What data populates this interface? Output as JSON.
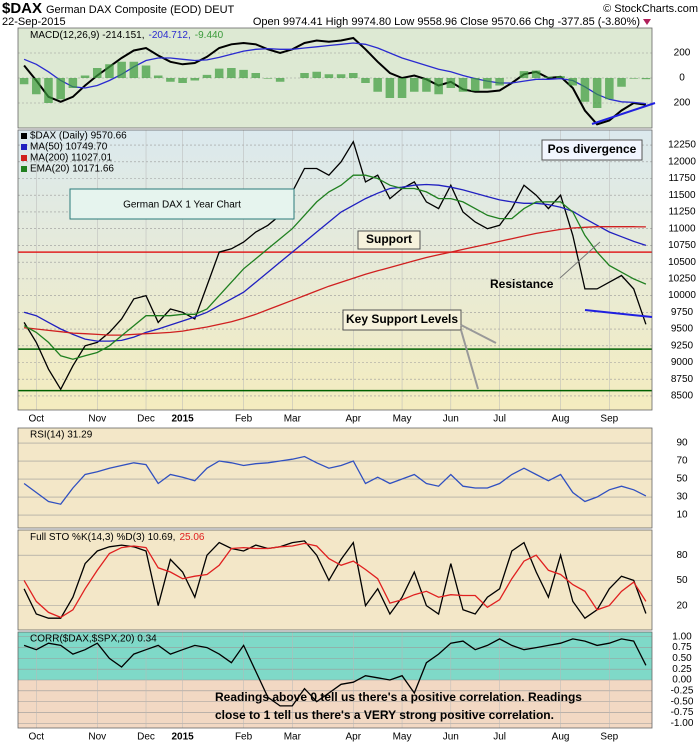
{
  "header": {
    "symbol": "$DAX",
    "name": "German DAX Composite (EOD) DEUT",
    "date": "22-Sep-2015",
    "quote": "Open 9974.41 High 9974.80 Low 9558.96 Close 9570.66 Chg -377.85 (-3.80%)",
    "source": "© StockCharts.com"
  },
  "chart_data": [
    {
      "type": "line",
      "ylim": [
        -400,
        400
      ],
      "yticks": [
        200,
        0,
        {
          "value": -200,
          "label": "200"
        }
      ],
      "series": [
        {
          "name": "MACD(12,26,9) -214.151,",
          "color": "#000000",
          "values": [
            100,
            -20,
            -150,
            -190,
            -150,
            -60,
            20,
            90,
            160,
            220,
            240,
            180,
            130,
            110,
            120,
            170,
            240,
            270,
            280,
            270,
            230,
            200,
            230,
            280,
            300,
            290,
            300,
            320,
            230,
            130,
            40,
            0,
            20,
            -10,
            -60,
            -30,
            -90,
            -110,
            -110,
            -100,
            -40,
            30,
            50,
            0,
            10,
            -80,
            -260,
            -370,
            -340,
            -260,
            -200,
            -214.151
          ]
        },
        {
          "name": "-204.712,",
          "color": "#2a2ad0",
          "values": [
            150,
            110,
            50,
            -20,
            -70,
            -80,
            -60,
            -20,
            30,
            90,
            140,
            160,
            160,
            150,
            140,
            145,
            165,
            190,
            215,
            230,
            235,
            230,
            230,
            240,
            250,
            260,
            270,
            280,
            270,
            240,
            200,
            160,
            130,
            100,
            70,
            50,
            20,
            -5,
            -25,
            -40,
            -40,
            -25,
            -10,
            -10,
            -5,
            -20,
            -70,
            -130,
            -170,
            -190,
            -195,
            -204.712
          ]
        },
        {
          "name": "-9.440",
          "color": "#3a9a3a",
          "type": "bar",
          "values": [
            -50,
            -130,
            -200,
            -170,
            -80,
            20,
            80,
            110,
            130,
            130,
            100,
            20,
            -30,
            -40,
            -20,
            25,
            75,
            80,
            65,
            40,
            -5,
            -30,
            0,
            40,
            50,
            30,
            30,
            40,
            -40,
            -110,
            -160,
            -160,
            -110,
            -110,
            -130,
            -80,
            -110,
            -105,
            -85,
            -60,
            0,
            55,
            60,
            10,
            15,
            -60,
            -190,
            -240,
            -170,
            -70,
            -5,
            -9.44
          ]
        }
      ]
    },
    {
      "type": "line",
      "ylim": [
        8290,
        12475
      ],
      "yticks": [
        8500,
        8750,
        9000,
        9250,
        9500,
        9750,
        10000,
        10250,
        10500,
        10750,
        11000,
        11250,
        11500,
        11750,
        12000,
        12250
      ],
      "categories": [
        null,
        "Oct",
        null,
        null,
        null,
        null,
        "Nov",
        null,
        null,
        null,
        "Dec",
        null,
        null,
        "2015",
        null,
        null,
        null,
        null,
        "Feb",
        null,
        null,
        null,
        "Mar",
        null,
        null,
        null,
        null,
        "Apr",
        null,
        null,
        null,
        "May",
        null,
        null,
        null,
        "Jun",
        null,
        null,
        null,
        "Jul",
        null,
        null,
        null,
        null,
        "Aug",
        null,
        null,
        null,
        "Sep",
        null,
        null,
        null
      ],
      "series": [
        {
          "name": "$DAX (Daily) 9570.66",
          "color": "#000000",
          "values": [
            9600,
            9300,
            8900,
            8600,
            8950,
            9250,
            9300,
            9450,
            9650,
            9950,
            10000,
            9600,
            9800,
            9750,
            9650,
            10150,
            10650,
            10700,
            10800,
            10950,
            11050,
            11200,
            11550,
            11900,
            11900,
            11800,
            12000,
            12300,
            11700,
            11800,
            11450,
            11600,
            11700,
            11400,
            11300,
            11650,
            11250,
            11100,
            11000,
            11050,
            11300,
            11650,
            11500,
            11300,
            11500,
            10900,
            10100,
            10100,
            10200,
            10300,
            10100,
            9570.66
          ]
        },
        {
          "name": "MA(50) 10749.70",
          "color": "#2020c0",
          "values": [
            9750,
            9700,
            9600,
            9500,
            9420,
            9350,
            9320,
            9320,
            9330,
            9380,
            9450,
            9500,
            9560,
            9620,
            9680,
            9750,
            9850,
            9950,
            10050,
            10200,
            10350,
            10500,
            10650,
            10800,
            10950,
            11100,
            11250,
            11350,
            11450,
            11530,
            11600,
            11620,
            11650,
            11660,
            11650,
            11620,
            11580,
            11530,
            11480,
            11430,
            11400,
            11380,
            11380,
            11360,
            11320,
            11260,
            11150,
            11050,
            10950,
            10880,
            10810,
            10749.7
          ]
        },
        {
          "name": "MA(200) 11027.01",
          "color": "#d02020",
          "values": [
            9520,
            9500,
            9480,
            9460,
            9440,
            9430,
            9420,
            9410,
            9410,
            9420,
            9430,
            9440,
            9450,
            9470,
            9500,
            9530,
            9570,
            9610,
            9660,
            9720,
            9790,
            9860,
            9930,
            10000,
            10070,
            10140,
            10200,
            10260,
            10320,
            10370,
            10420,
            10470,
            10520,
            10570,
            10610,
            10650,
            10690,
            10730,
            10770,
            10810,
            10850,
            10890,
            10930,
            10960,
            10990,
            11010,
            11020,
            11030,
            11030,
            11030,
            11030,
            11027.01
          ]
        },
        {
          "name": "EMA(20) 10171.66",
          "color": "#208020",
          "values": [
            9550,
            9450,
            9300,
            9100,
            9050,
            9100,
            9150,
            9250,
            9400,
            9550,
            9700,
            9700,
            9700,
            9720,
            9720,
            9800,
            10000,
            10200,
            10400,
            10550,
            10700,
            10850,
            11000,
            11200,
            11400,
            11550,
            11650,
            11800,
            11800,
            11750,
            11650,
            11600,
            11600,
            11550,
            11450,
            11450,
            11400,
            11300,
            11200,
            11150,
            11150,
            11300,
            11400,
            11400,
            11400,
            11250,
            10900,
            10650,
            10450,
            10350,
            10250,
            10171.66
          ]
        }
      ],
      "levels": [
        {
          "value": 10650,
          "color": "#e02020"
        },
        {
          "value": 9200,
          "color": "#006000"
        },
        {
          "value": 8580,
          "color": "#006000"
        }
      ],
      "annotations": [
        "German DAX 1 Year Chart",
        "Support",
        "Resistance",
        "Pos divergence",
        "Key Support Levels"
      ]
    },
    {
      "type": "line",
      "title": "RSI(14) 31.29",
      "ylim": [
        -4.4,
        106.7
      ],
      "yticks": [
        90,
        70,
        50,
        30,
        10
      ],
      "series": [
        {
          "color": "#3050c0",
          "values": [
            45,
            35,
            25,
            22,
            40,
            55,
            58,
            62,
            65,
            68,
            66,
            45,
            55,
            52,
            48,
            62,
            70,
            68,
            65,
            67,
            68,
            70,
            72,
            75,
            68,
            62,
            65,
            70,
            45,
            52,
            45,
            50,
            55,
            45,
            42,
            55,
            42,
            40,
            40,
            45,
            55,
            62,
            55,
            48,
            55,
            35,
            25,
            30,
            38,
            42,
            38,
            31.29
          ]
        }
      ]
    },
    {
      "type": "line",
      "ylim": [
        -9,
        110
      ],
      "yticks": [
        80,
        50,
        20
      ],
      "series": [
        {
          "name": "Full STO %K(14,3) %D(3) 10.69,",
          "color": "#000000",
          "values": [
            40,
            10,
            5,
            5,
            30,
            70,
            85,
            90,
            92,
            90,
            85,
            20,
            75,
            60,
            30,
            80,
            95,
            88,
            85,
            92,
            88,
            90,
            95,
            97,
            80,
            50,
            75,
            95,
            20,
            40,
            10,
            30,
            60,
            20,
            10,
            70,
            15,
            10,
            30,
            40,
            85,
            95,
            60,
            30,
            80,
            25,
            5,
            15,
            40,
            55,
            50,
            10.69
          ]
        },
        {
          "name": "25.06",
          "color": "#e02020",
          "values": [
            50,
            25,
            12,
            6,
            15,
            40,
            62,
            82,
            89,
            91,
            89,
            65,
            60,
            52,
            55,
            57,
            68,
            88,
            89,
            88,
            88,
            90,
            91,
            94,
            91,
            76,
            68,
            73,
            63,
            52,
            23,
            27,
            33,
            37,
            30,
            33,
            32,
            32,
            18,
            27,
            52,
            73,
            80,
            62,
            57,
            45,
            37,
            15,
            20,
            37,
            48,
            25.06
          ]
        }
      ]
    },
    {
      "type": "line",
      "title": "CORR($DAX,$SPX,20) 0.34",
      "ylim": [
        -1.11,
        1.11
      ],
      "yticks": [
        {
          "value": 1,
          "label": "1.00"
        },
        0.75,
        {
          "value": 0.5,
          "label": "0.50"
        },
        0.25,
        {
          "value": 0,
          "label": "0.00"
        },
        -0.25,
        {
          "value": -0.5,
          "label": "-0.50"
        },
        -0.75,
        {
          "value": -1,
          "label": "-1.00"
        }
      ],
      "categories": [
        null,
        "Oct",
        null,
        null,
        null,
        null,
        "Nov",
        null,
        null,
        null,
        "Dec",
        null,
        null,
        "2015",
        null,
        null,
        null,
        null,
        "Feb",
        null,
        null,
        null,
        "Mar",
        null,
        null,
        null,
        null,
        "Apr",
        null,
        null,
        null,
        "May",
        null,
        null,
        null,
        "Jun",
        null,
        null,
        null,
        "Jul",
        null,
        null,
        null,
        null,
        "Aug",
        null,
        null,
        null,
        "Sep",
        null,
        null,
        null
      ],
      "series": [
        {
          "color": "#000000",
          "values": [
            0.8,
            0.7,
            0.85,
            0.8,
            0.6,
            0.7,
            0.85,
            0.5,
            0.3,
            0.6,
            0.7,
            0.8,
            0.6,
            0.7,
            0.8,
            0.75,
            0.6,
            0.4,
            0.8,
            0.2,
            -0.4,
            -0.6,
            -0.6,
            -0.2,
            -0.5,
            -0.3,
            -0.1,
            -0.05,
            0.1,
            0.05,
            0,
            0.1,
            -0.3,
            0.4,
            0.6,
            0.85,
            0.9,
            0.7,
            0.8,
            0.95,
            0.8,
            0.7,
            0.75,
            0.8,
            0.85,
            0.95,
            0.9,
            0.8,
            0.85,
            0.95,
            0.9,
            0.34
          ]
        }
      ],
      "annotations": [
        "Readings above 0 tell us there's a positive correlation.  Readings",
        "close to 1 tell us there's a VERY strong positive correlation."
      ]
    }
  ]
}
